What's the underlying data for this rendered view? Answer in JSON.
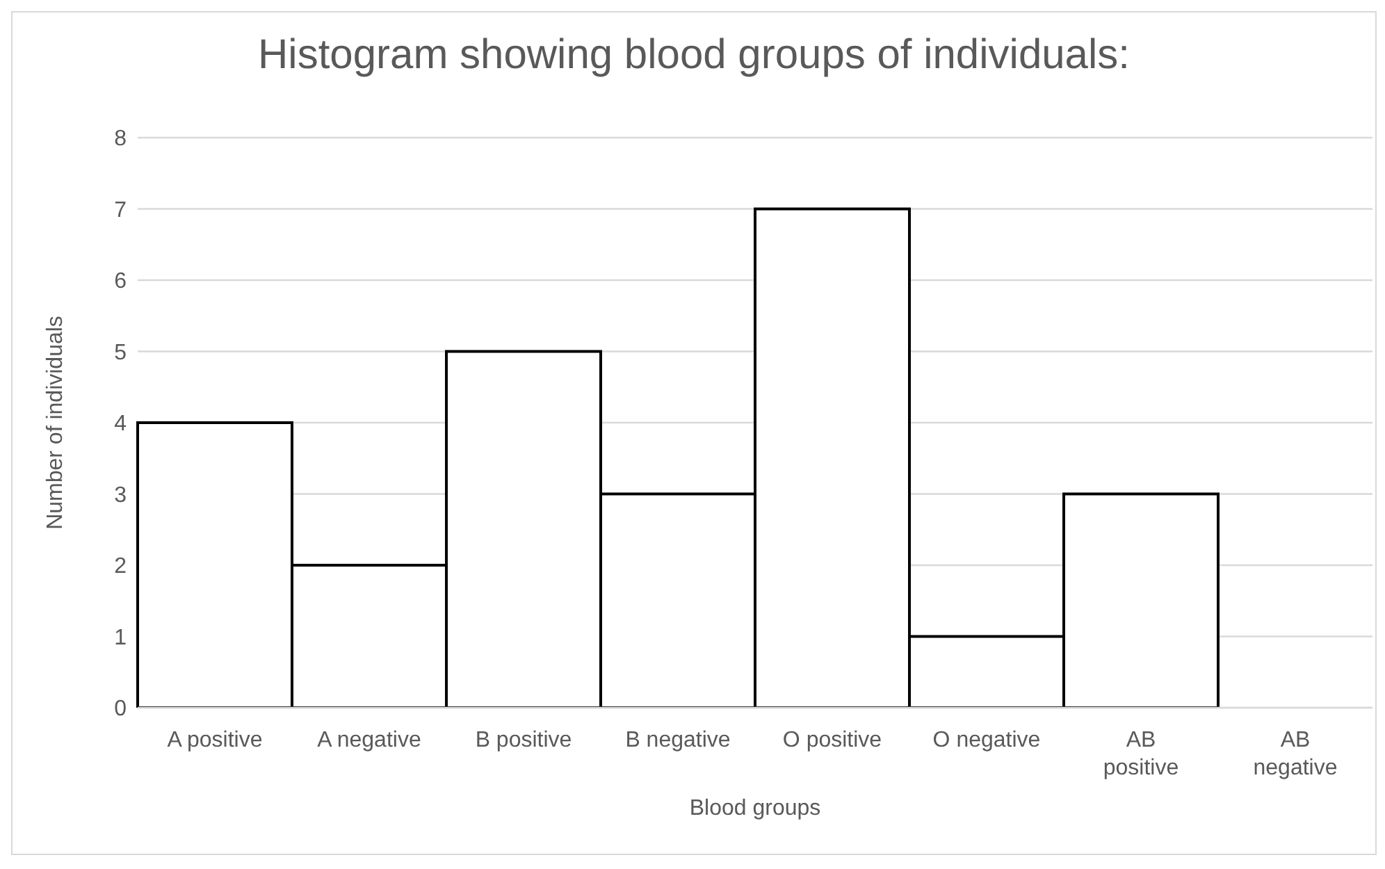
{
  "chart_data": {
    "type": "bar",
    "title": "Histogram showing blood groups of individuals:",
    "xlabel": "Blood groups",
    "ylabel": "Number of individuals",
    "categories": [
      "A positive",
      "A negative",
      "B positive",
      "B negative",
      "O positive",
      "O negative",
      "AB positive",
      "AB negative"
    ],
    "values": [
      4,
      2,
      5,
      3,
      7,
      1,
      3,
      0
    ],
    "color": "#ffffff",
    "ylim": [
      0,
      8
    ],
    "yticks": [
      0,
      1,
      2,
      3,
      4,
      5,
      6,
      7,
      8
    ],
    "grid": "y",
    "legend": false
  }
}
